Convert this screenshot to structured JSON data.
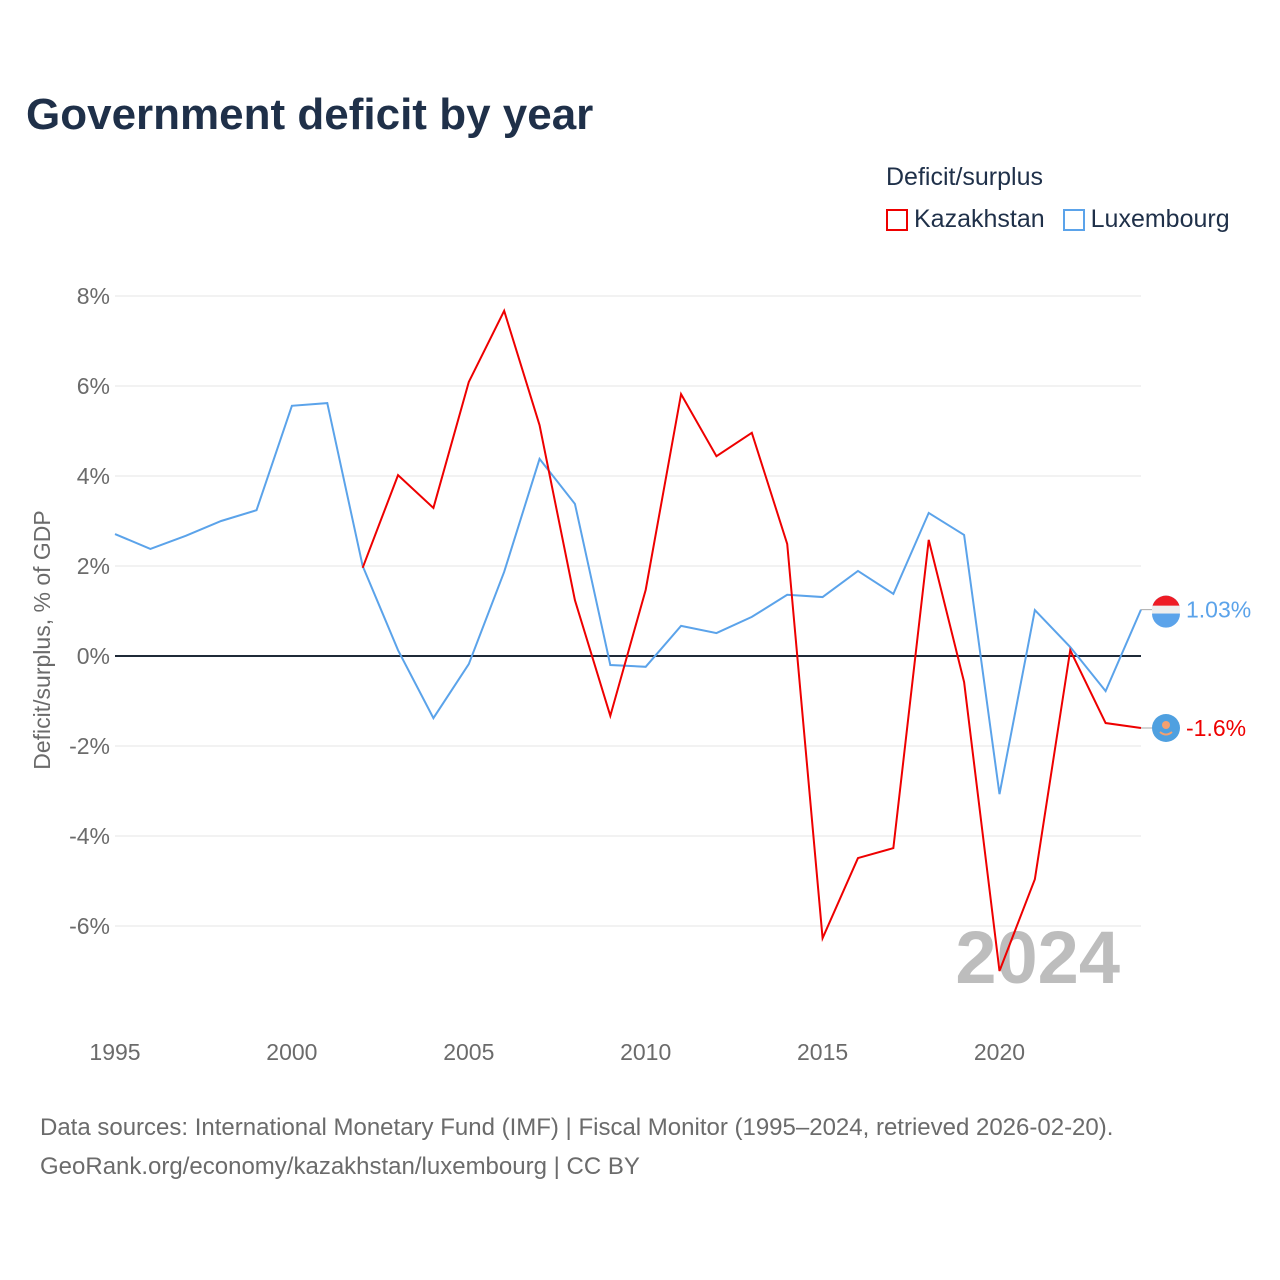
{
  "chart_data": {
    "type": "line",
    "title": "Government deficit by year",
    "xlabel": "",
    "ylabel": "Deficit/surplus, % of GDP",
    "xlim": [
      1995,
      2024
    ],
    "ylim": [
      -8,
      8
    ],
    "yticks": [
      8,
      6,
      4,
      2,
      0,
      -2,
      -4,
      -6
    ],
    "ytick_labels": [
      "8%",
      "6%",
      "4%",
      "2%",
      "0%",
      "-2%",
      "-4%",
      "-6%"
    ],
    "xticks": [
      1995,
      2000,
      2005,
      2010,
      2015,
      2020
    ],
    "xtick_labels": [
      "1995",
      "2000",
      "2005",
      "2010",
      "2015",
      "2020"
    ],
    "grid": true,
    "legend_title": "Deficit/surplus",
    "legend_placement": "top-right",
    "year_watermark": "2024",
    "series": [
      {
        "name": "Kazakhstan",
        "color": "#ee0000",
        "end_label": "-1.6%",
        "x": [
          2002,
          2003,
          2004,
          2005,
          2006,
          2007,
          2008,
          2009,
          2010,
          2011,
          2012,
          2013,
          2014,
          2015,
          2016,
          2017,
          2018,
          2019,
          2020,
          2021,
          2022,
          2023,
          2024
        ],
        "values": [
          1.96,
          4.02,
          3.29,
          6.09,
          7.67,
          5.13,
          1.24,
          -1.33,
          1.47,
          5.82,
          4.44,
          4.96,
          2.49,
          -6.27,
          -4.49,
          -4.27,
          2.58,
          -0.58,
          -7.0,
          -4.96,
          0.13,
          -1.49,
          -1.6
        ]
      },
      {
        "name": "Luxembourg",
        "color": "#5ba3ea",
        "end_label": "1.03%",
        "x": [
          1995,
          1996,
          1997,
          1998,
          1999,
          2000,
          2001,
          2002,
          2003,
          2004,
          2005,
          2006,
          2007,
          2008,
          2009,
          2010,
          2011,
          2012,
          2013,
          2014,
          2015,
          2016,
          2017,
          2018,
          2019,
          2020,
          2021,
          2022,
          2023,
          2024
        ],
        "values": [
          2.71,
          2.38,
          2.67,
          3.0,
          3.24,
          5.56,
          5.62,
          2.0,
          0.13,
          -1.38,
          -0.18,
          1.87,
          4.38,
          3.38,
          -0.2,
          -0.24,
          0.67,
          0.51,
          0.87,
          1.36,
          1.31,
          1.89,
          1.38,
          3.18,
          2.69,
          -3.07,
          1.02,
          0.2,
          -0.78,
          1.03
        ]
      }
    ]
  },
  "source": {
    "line1": "Data sources: International Monetary Fund (IMF) | Fiscal Monitor (1995–2024, retrieved 2026-02-20).",
    "line2": "GeoRank.org/economy/kazakhstan/luxembourg | CC BY"
  }
}
